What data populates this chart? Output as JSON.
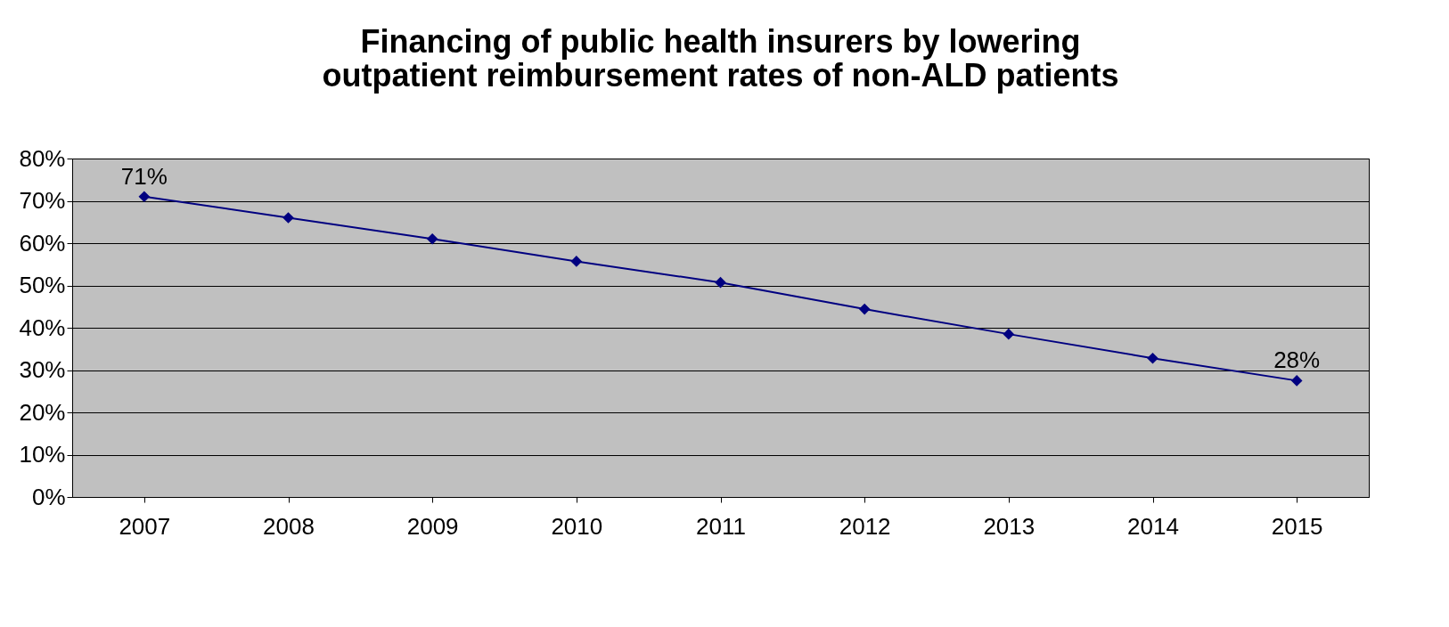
{
  "chart_data": {
    "type": "line",
    "title": [
      "Financing of public health insurers by lowering",
      "outpatient reimbursement rates of non-ALD patients"
    ],
    "categories": [
      "2007",
      "2008",
      "2009",
      "2010",
      "2011",
      "2012",
      "2013",
      "2014",
      "2015"
    ],
    "series": [
      {
        "color": "#000080",
        "values": [
          71,
          66,
          61,
          55.7,
          50.7,
          44.4,
          38.5,
          32.8,
          27.5
        ],
        "value_labels": [
          "71%",
          null,
          null,
          null,
          null,
          null,
          null,
          null,
          "28%"
        ]
      }
    ],
    "ylim": [
      0,
      80
    ],
    "yticks": [
      {
        "value": 0,
        "label": "0%"
      },
      {
        "value": 10,
        "label": "10%"
      },
      {
        "value": 20,
        "label": "20%"
      },
      {
        "value": 30,
        "label": "30%"
      },
      {
        "value": 40,
        "label": "40%"
      },
      {
        "value": 50,
        "label": "50%"
      },
      {
        "value": 60,
        "label": "60%"
      },
      {
        "value": 70,
        "label": "70%"
      },
      {
        "value": 80,
        "label": "80%"
      }
    ],
    "grid": "y",
    "marker": "diamond",
    "line_style": "solid"
  }
}
